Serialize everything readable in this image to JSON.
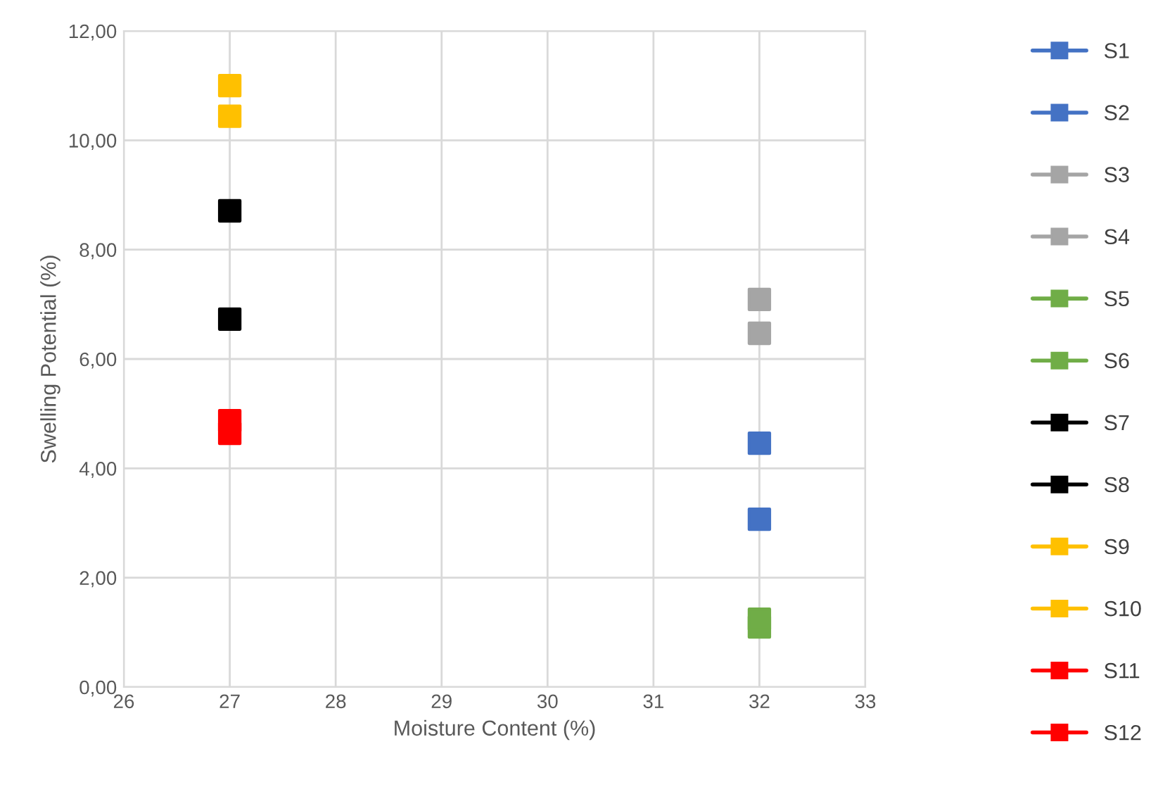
{
  "chart_data": {
    "type": "scatter",
    "xlabel": "Moisture Content (%)",
    "ylabel": "Swelling Potential (%)",
    "xlim": [
      26,
      33
    ],
    "xticks": [
      26,
      27,
      28,
      29,
      30,
      31,
      32,
      33
    ],
    "ylim": [
      0,
      12
    ],
    "yticks": [
      {
        "value": 0,
        "label": "0,00"
      },
      {
        "value": 2,
        "label": "2,00"
      },
      {
        "value": 4,
        "label": "4,00"
      },
      {
        "value": 6,
        "label": "6,00"
      },
      {
        "value": 8,
        "label": "8,00"
      },
      {
        "value": 10,
        "label": "10,00"
      },
      {
        "value": 12,
        "label": "12,00"
      }
    ],
    "grid": true,
    "legend": "right",
    "marker": "square",
    "x": [
      27,
      32
    ],
    "series": [
      {
        "name": "S1",
        "color": "#4472c4",
        "values": [
          null,
          4.46
        ]
      },
      {
        "name": "S2",
        "color": "#4472c4",
        "values": [
          null,
          3.07
        ]
      },
      {
        "name": "S3",
        "color": "#a5a5a5",
        "values": [
          null,
          7.09
        ]
      },
      {
        "name": "S4",
        "color": "#a5a5a5",
        "values": [
          null,
          6.47
        ]
      },
      {
        "name": "S5",
        "color": "#70ad47",
        "values": [
          null,
          1.24
        ]
      },
      {
        "name": "S6",
        "color": "#70ad47",
        "values": [
          null,
          1.1
        ]
      },
      {
        "name": "S7",
        "color": "#000000",
        "values": [
          8.71,
          null
        ]
      },
      {
        "name": "S8",
        "color": "#000000",
        "values": [
          6.73,
          null
        ]
      },
      {
        "name": "S9",
        "color": "#ffc000",
        "values": [
          10.44,
          null
        ]
      },
      {
        "name": "S10",
        "color": "#ffc000",
        "values": [
          11.0,
          null
        ]
      },
      {
        "name": "S11",
        "color": "#ff0000",
        "values": [
          4.87,
          null
        ]
      },
      {
        "name": "S12",
        "color": "#ff0000",
        "values": [
          4.64,
          null
        ]
      }
    ]
  }
}
